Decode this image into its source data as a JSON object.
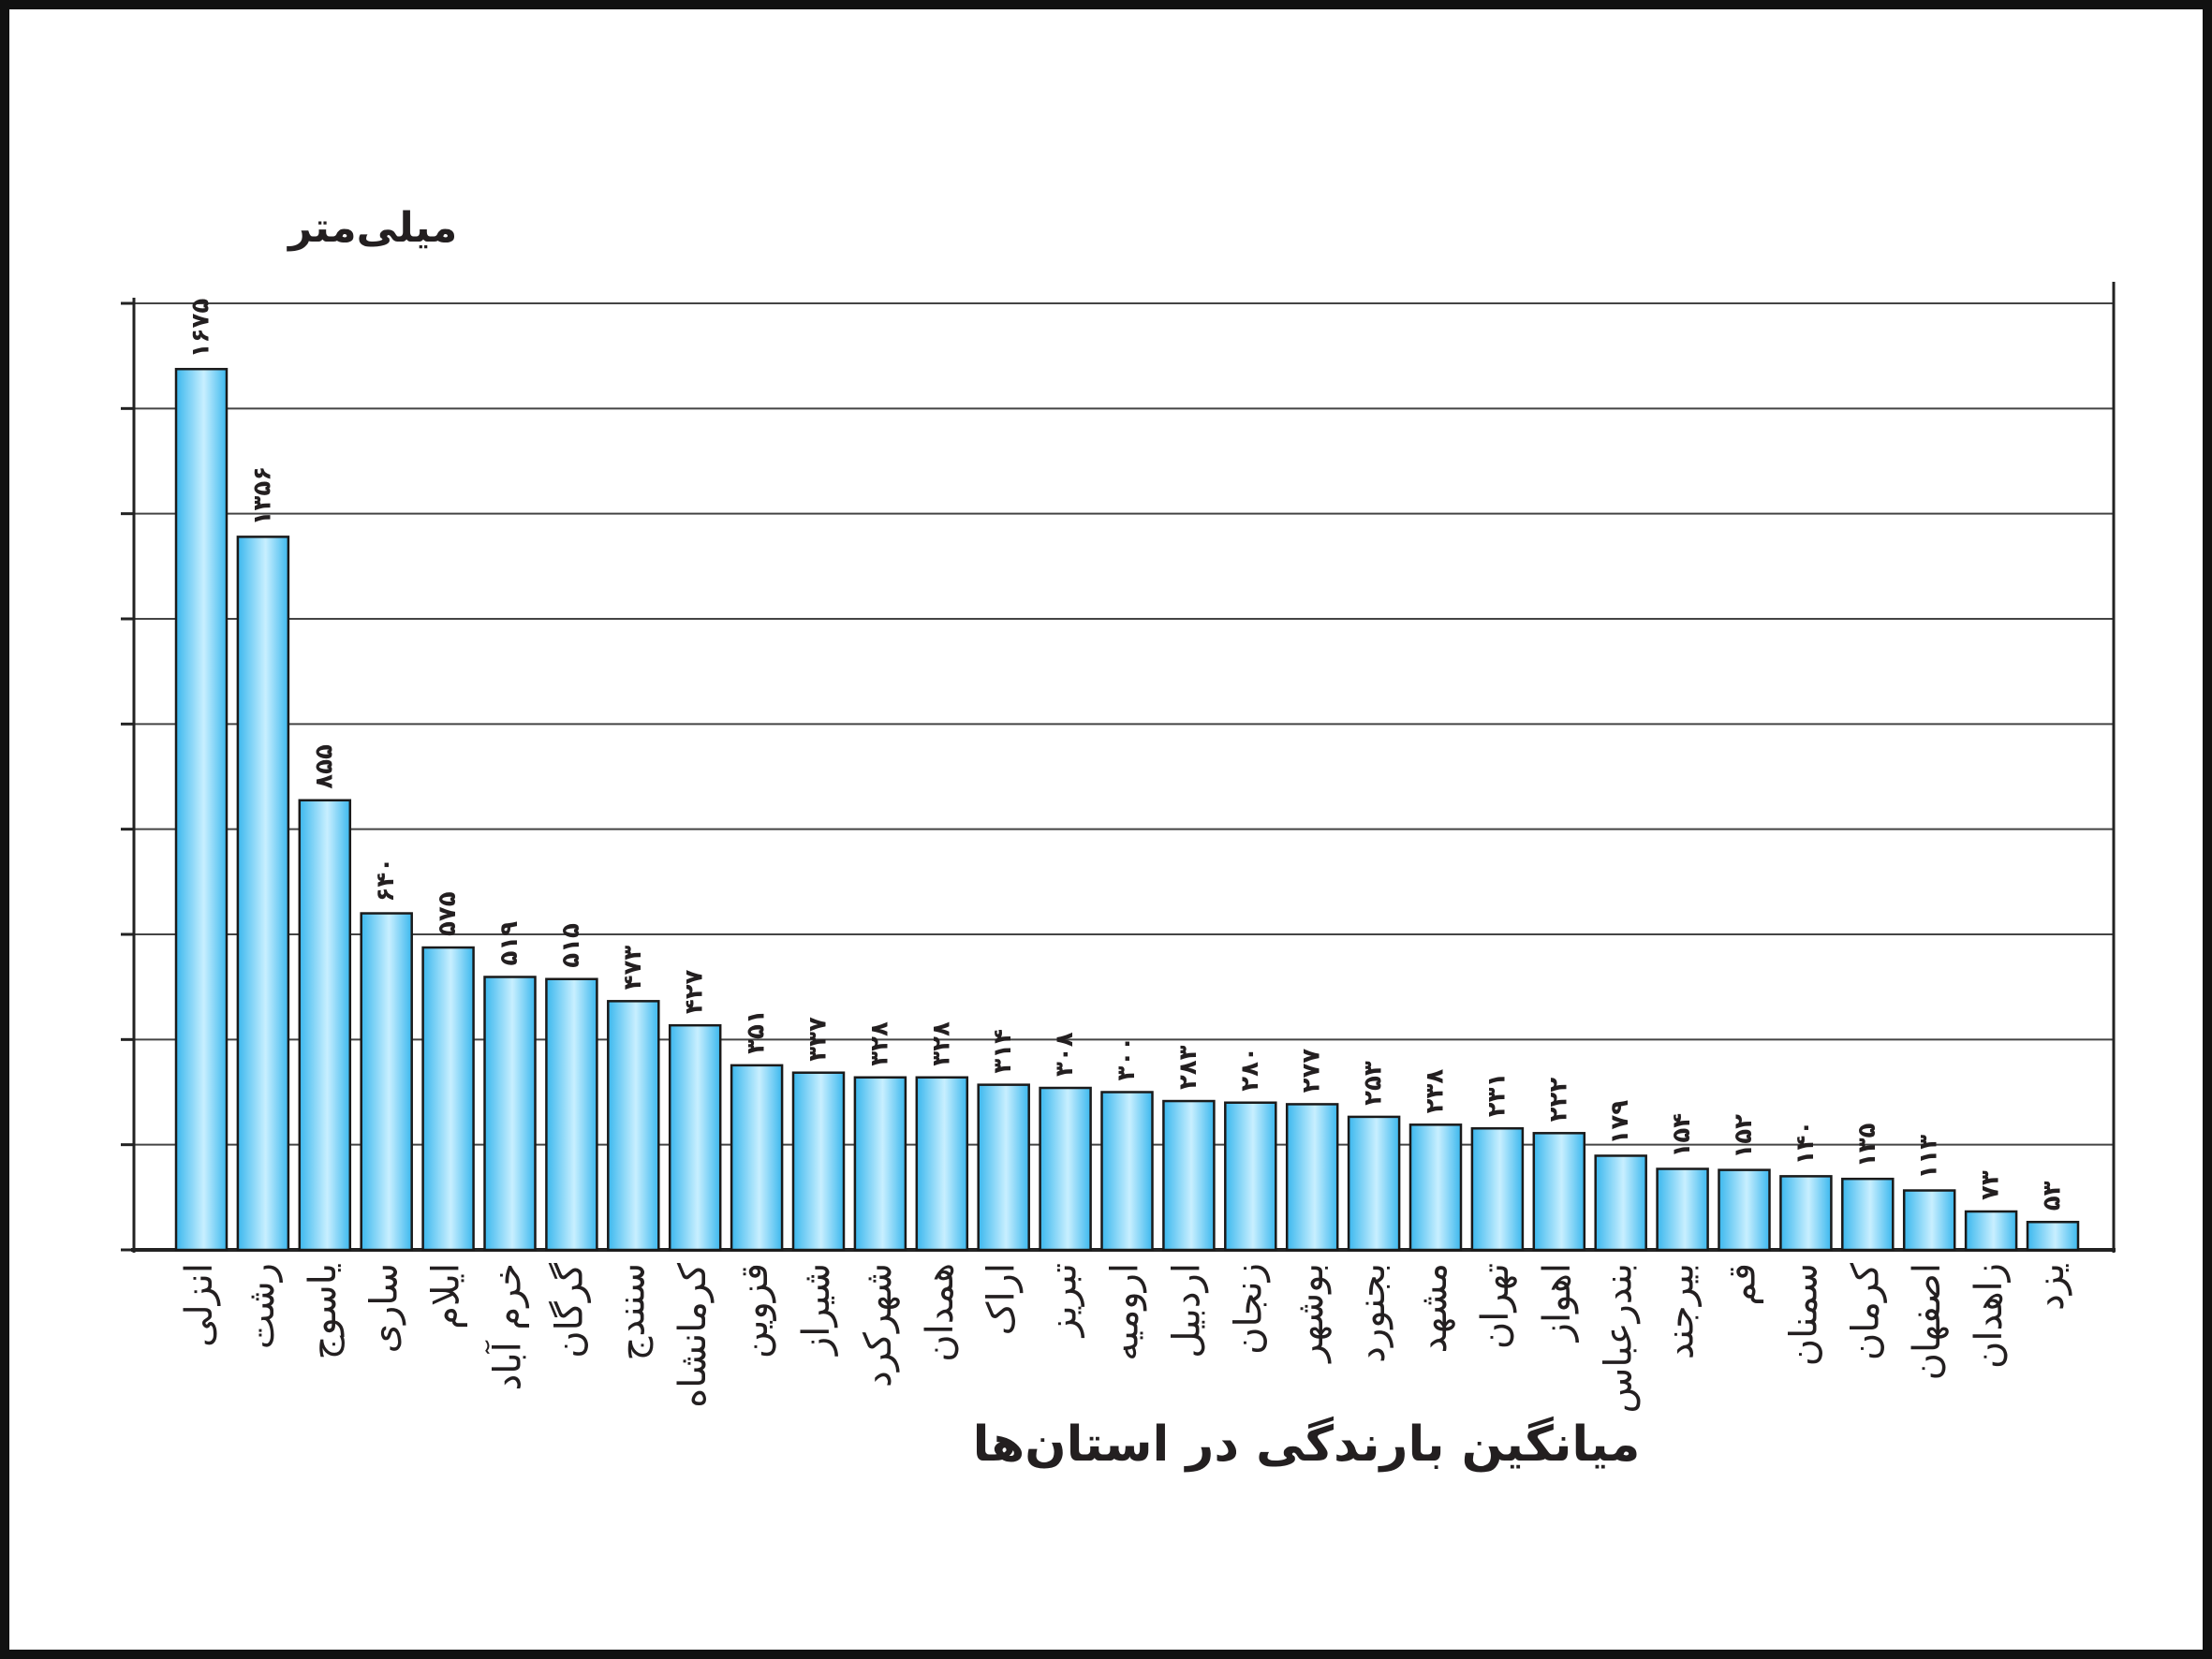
{
  "chart_data": {
    "type": "bar",
    "title": "میانگین بارندگی در استان‌ها",
    "y_label": "میلی‌متر",
    "categories": [
      "انزلی",
      "رشت",
      "یاسوج",
      "ساری",
      "ایلام",
      "خرم آباد",
      "گرگان",
      "سنندج",
      "کرمانشاه",
      "قزوین",
      "شیراز",
      "شهرکرد",
      "همدان",
      "اراک",
      "تبریز",
      "ارومیه",
      "اردبیل",
      "زنجان",
      "بوشهر",
      "بجنورد",
      "مشهد",
      "تهران",
      "اهواز",
      "بندرعباس",
      "بیرجند",
      "قم",
      "سمنان",
      "کرمان",
      "اصفهان",
      "زاهدان",
      "یزد"
    ],
    "values": [
      1675,
      1356,
      855,
      640,
      575,
      519,
      515,
      473,
      427,
      351,
      337,
      328,
      328,
      314,
      308,
      300,
      283,
      280,
      277,
      253,
      238,
      231,
      222,
      179,
      154,
      152,
      140,
      135,
      113,
      73,
      53
    ],
    "value_labels": [
      "۱۶۷۵",
      "۱۳۵۶",
      "۸۵۵",
      "۶۴۰",
      "۵۷۵",
      "۵۱۹",
      "۵۱۵",
      "۴۷۳",
      "۴۲۷",
      "۳۵۱",
      "۳۳۷",
      "۳۲۸",
      "۳۲۸",
      "۳۱۴",
      "۳۰۸",
      "۳۰۰",
      "۲۸۳",
      "۲۸۰",
      "۲۷۷",
      "۲۵۳",
      "۲۳۸",
      "۲۳۱",
      "۲۲۲",
      "۱۷۹",
      "۱۵۴",
      "۱۵۲",
      "۱۴۰",
      "۱۳۵",
      "۱۱۳",
      "۷۳",
      "۵۳"
    ],
    "color": "#3cb8ee",
    "ylim": [
      0,
      1800
    ],
    "yticks": [
      0,
      200,
      400,
      600,
      800,
      1000,
      1200,
      1400,
      1600,
      1800
    ],
    "grid": true
  }
}
